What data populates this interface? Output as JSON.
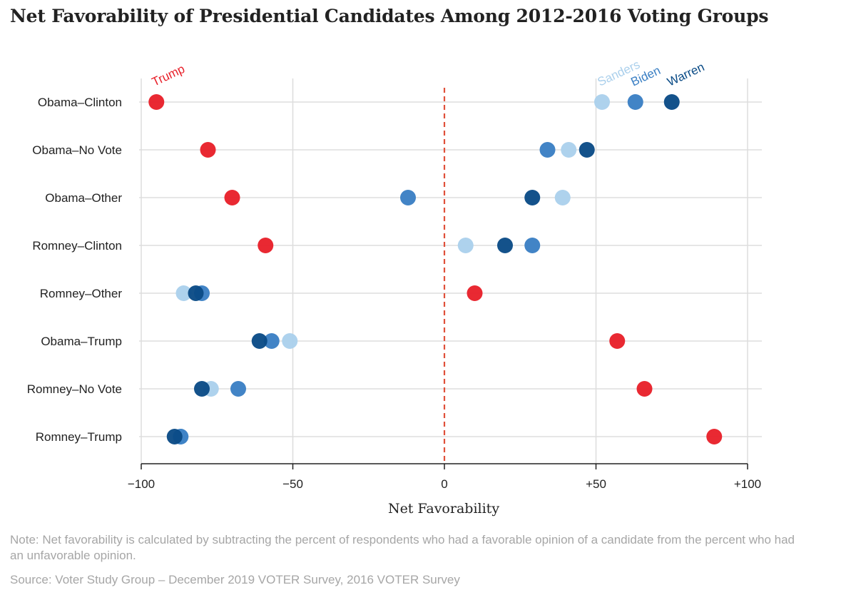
{
  "chart_data": {
    "type": "scatter",
    "title": "Net Favorability of Presidential Candidates Among 2012-2016 Voting Groups",
    "xlabel": "Net Favorability",
    "xlim": [
      -100,
      100
    ],
    "x_ticks": [
      -100,
      -50,
      0,
      50,
      100
    ],
    "x_tick_labels": [
      "−100",
      "−50",
      "0",
      "+50",
      "+100"
    ],
    "grid": true,
    "reference_line": 0,
    "categories": [
      "Obama–Clinton",
      "Obama–No Vote",
      "Obama–Other",
      "Romney–Clinton",
      "Romney–Other",
      "Obama–Trump",
      "Romney–No Vote",
      "Romney–Trump"
    ],
    "series": [
      {
        "name": "Trump",
        "color": "#e8202a",
        "values": [
          -95,
          -78,
          -70,
          -59,
          10,
          57,
          66,
          89
        ]
      },
      {
        "name": "Sanders",
        "color": "#abd0ec",
        "values": [
          52,
          41,
          39,
          7,
          -86,
          -51,
          -77,
          -87
        ]
      },
      {
        "name": "Biden",
        "color": "#3a7fc4",
        "values": [
          63,
          34,
          -12,
          29,
          -80,
          -57,
          -68,
          -87
        ]
      },
      {
        "name": "Warren",
        "color": "#0a4b86",
        "values": [
          75,
          47,
          29,
          20,
          -82,
          -61,
          -80,
          -89
        ]
      }
    ],
    "note": "Note: Net favorability is calculated by subtracting the percent of respondents who had a favorable opinion of a candidate from the percent who had an unfavorable opinion.",
    "source": "Source: Voter Study Group – December 2019 VOTER Survey, 2016 VOTER Survey"
  }
}
